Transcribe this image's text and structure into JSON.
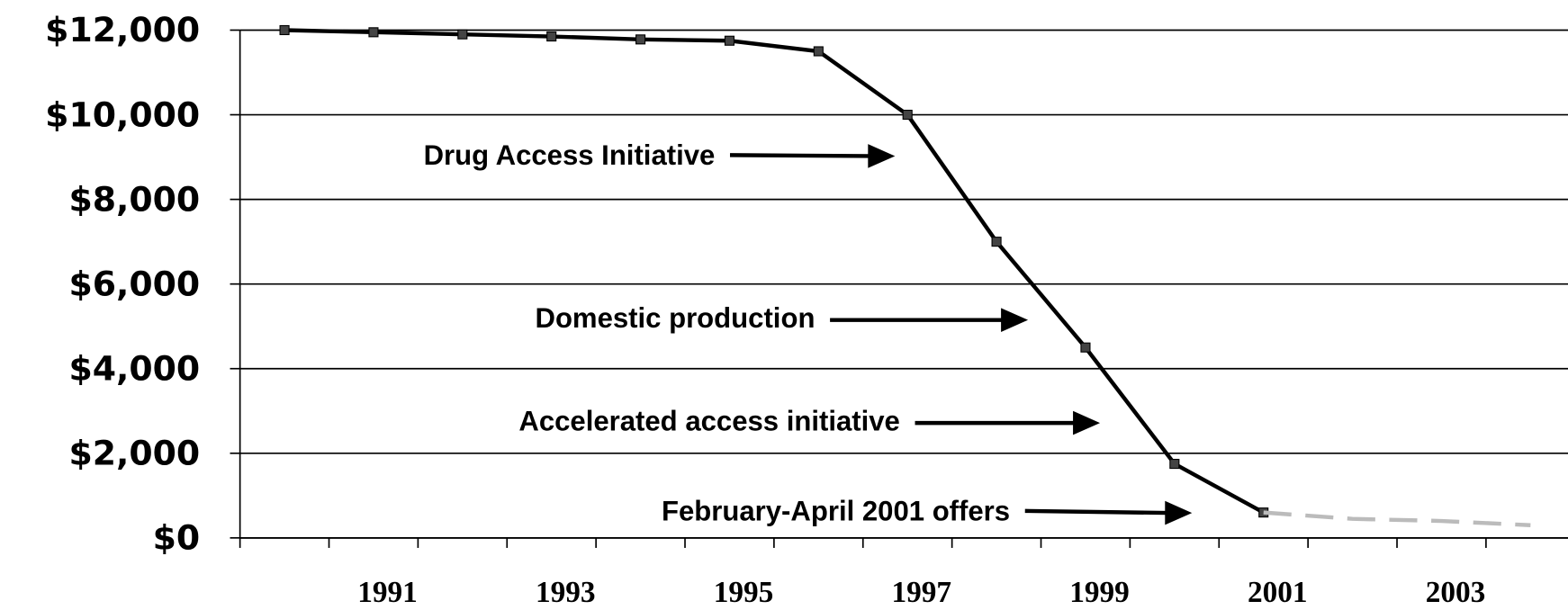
{
  "chart_data": {
    "type": "line",
    "categories": [
      "1990",
      "1991",
      "1992",
      "1993",
      "1994",
      "1995",
      "1996",
      "1997",
      "1998",
      "1999",
      "2000",
      "2001",
      "2002",
      "2003",
      "2004"
    ],
    "category_labels": [
      null,
      "1991",
      null,
      "1993",
      null,
      "1995",
      null,
      "1997",
      null,
      "1999",
      null,
      "2001",
      null,
      "2003",
      null
    ],
    "series": [
      {
        "color": "#000000",
        "style": "solid",
        "values": [
          12000,
          11950,
          11900,
          11850,
          11780,
          11750,
          11500,
          10000,
          7000,
          4500,
          1750,
          600,
          null,
          null,
          null
        ]
      },
      {
        "color": "#bbbbbb",
        "style": "dashed",
        "values": [
          null,
          null,
          null,
          null,
          null,
          null,
          null,
          null,
          null,
          null,
          null,
          600,
          450,
          400,
          300
        ]
      }
    ],
    "ylim": [
      0,
      12000
    ],
    "yticks": [
      {
        "value": 0,
        "label": "$0"
      },
      {
        "value": 2000,
        "label": "$2,000"
      },
      {
        "value": 4000,
        "label": "$4,000"
      },
      {
        "value": 6000,
        "label": "$6,000"
      },
      {
        "value": 8000,
        "label": "$8,000"
      },
      {
        "value": 10000,
        "label": "$10,000"
      },
      {
        "value": 12000,
        "label": "$12,000"
      }
    ],
    "grid": true,
    "annotations": [
      "Drug Access Initiative",
      "Domestic production",
      "Accelerated access initiative",
      "February-April 2001 offers"
    ]
  }
}
